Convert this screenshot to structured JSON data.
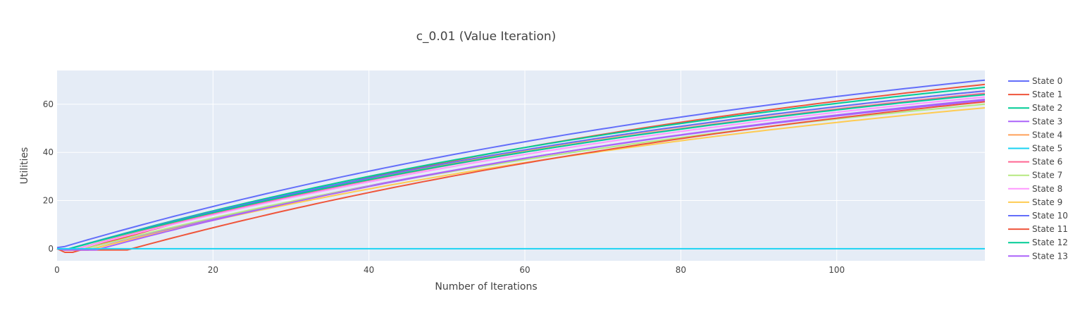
{
  "chart_data": {
    "type": "line",
    "title": "c_0.01 (Value Iteration)",
    "xlabel": "Number of Iterations",
    "ylabel": "Utilities",
    "xlim": [
      0,
      119
    ],
    "ylim": [
      -5,
      74
    ],
    "xticks": [
      0,
      20,
      40,
      60,
      80,
      100
    ],
    "yticks": [
      0,
      20,
      40,
      60
    ],
    "grid": true,
    "legend_position": "right",
    "series": [
      {
        "name": "State 0",
        "color": "#636efa",
        "start": 0.5,
        "drop_to": 0,
        "drop_at": 0,
        "rise_from": 0,
        "end": 70.0
      },
      {
        "name": "State 1",
        "color": "#EF553B",
        "start": 0,
        "drop_to": -1.5,
        "drop_at": 1,
        "rise_from": 2,
        "end": 68.2
      },
      {
        "name": "State 2",
        "color": "#00cc96",
        "start": 0,
        "drop_to": -0.5,
        "drop_at": 1,
        "rise_from": 1,
        "end": 67.0
      },
      {
        "name": "State 3",
        "color": "#ab63fa",
        "start": 0,
        "drop_to": -0.5,
        "drop_at": 1,
        "rise_from": 4,
        "end": 61.5
      },
      {
        "name": "State 4",
        "color": "#FFA15A",
        "start": 0,
        "drop_to": -0.5,
        "drop_at": 1,
        "rise_from": 2,
        "end": 65.5
      },
      {
        "name": "State 5",
        "color": "#19d3f3",
        "start": 0,
        "drop_to": 0,
        "drop_at": 0,
        "rise_from": 0,
        "end": 0,
        "flat": true
      },
      {
        "name": "State 6",
        "color": "#FF6692",
        "start": 0,
        "drop_to": -0.5,
        "drop_at": 1,
        "rise_from": 2,
        "end": 64.5
      },
      {
        "name": "State 7",
        "color": "#B6E880",
        "start": 0,
        "drop_to": -0.5,
        "drop_at": 1,
        "rise_from": 3,
        "end": 60.0
      },
      {
        "name": "State 8",
        "color": "#FF97FF",
        "start": 0,
        "drop_to": -0.5,
        "drop_at": 1,
        "rise_from": 2,
        "end": 63.0
      },
      {
        "name": "State 9",
        "color": "#FECB52",
        "start": 0,
        "drop_to": -0.5,
        "drop_at": 1,
        "rise_from": 4,
        "end": 58.5
      },
      {
        "name": "State 10",
        "color": "#636efa",
        "start": 0,
        "drop_to": -0.5,
        "drop_at": 1,
        "rise_from": 1,
        "end": 65.5
      },
      {
        "name": "State 11",
        "color": "#EF553B",
        "start": 0,
        "drop_to": -0.5,
        "drop_at": 1,
        "rise_from": 9,
        "end": 61.0
      },
      {
        "name": "State 12",
        "color": "#00cc96",
        "start": 0,
        "drop_to": -0.5,
        "drop_at": 1,
        "rise_from": 1,
        "end": 64.0
      },
      {
        "name": "State 13",
        "color": "#ab63fa",
        "start": 0,
        "drop_to": -0.5,
        "drop_at": 1,
        "rise_from": 5,
        "end": 62.0
      }
    ]
  }
}
